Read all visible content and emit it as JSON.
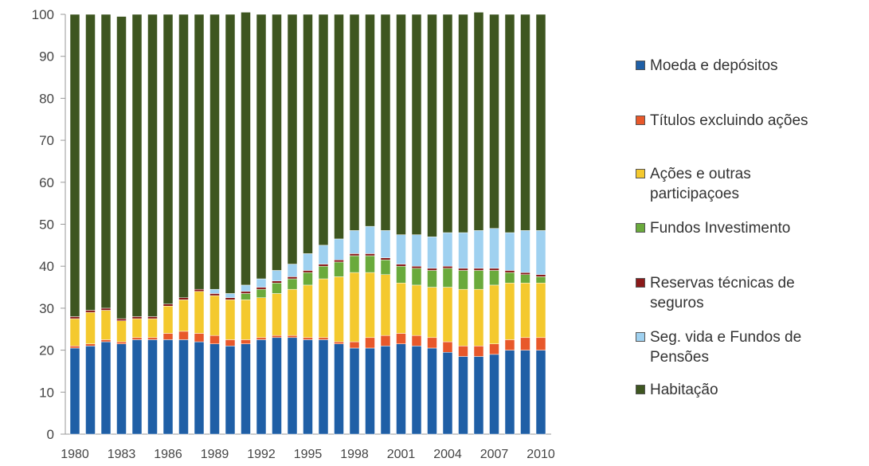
{
  "chart_data": {
    "type": "bar",
    "stacked": true,
    "title": "",
    "xlabel": "",
    "ylabel": "",
    "ylim": [
      0,
      100
    ],
    "yticks": [
      0,
      10,
      20,
      30,
      40,
      50,
      60,
      70,
      80,
      90,
      100
    ],
    "categories": [
      "1980",
      "1981",
      "1982",
      "1983",
      "1984",
      "1985",
      "1986",
      "1987",
      "1988",
      "1989",
      "1990",
      "1991",
      "1992",
      "1993",
      "1994",
      "1995",
      "1996",
      "1997",
      "1998",
      "1999",
      "2000",
      "2001",
      "2002",
      "2003",
      "2004",
      "2005",
      "2006",
      "2007",
      "2008",
      "2009",
      "2010"
    ],
    "xtick_labels": [
      "1980",
      "1983",
      "1986",
      "1989",
      "1992",
      "1995",
      "1998",
      "2001",
      "2004",
      "2007",
      "2010"
    ],
    "legend_position": "right",
    "grid": false,
    "series": [
      {
        "name": "Moeda e depósitos",
        "color": "#1f5fa6",
        "values": [
          20.5,
          21.0,
          22.0,
          21.5,
          22.5,
          22.5,
          22.5,
          22.5,
          22.0,
          21.5,
          21.0,
          21.5,
          22.5,
          23.0,
          23.0,
          22.5,
          22.5,
          21.5,
          20.5,
          20.5,
          21.0,
          21.5,
          21.0,
          20.5,
          19.5,
          18.5,
          18.5,
          19.0,
          20.0,
          20.0,
          20.0
        ]
      },
      {
        "name": "Títulos excluindo ações",
        "color": "#e8582a",
        "values": [
          0.5,
          0.5,
          0.5,
          0.5,
          0.5,
          0.5,
          1.5,
          2.0,
          2.0,
          2.0,
          1.5,
          1.0,
          0.5,
          0.5,
          0.5,
          0.5,
          0.5,
          0.5,
          1.5,
          2.5,
          2.5,
          2.5,
          2.5,
          2.5,
          2.5,
          2.5,
          2.5,
          2.5,
          2.5,
          3.0,
          3.0
        ]
      },
      {
        "name": "Ações e outras\nparticipaçoes",
        "color": "#f4c92e",
        "values": [
          6.5,
          7.5,
          7.0,
          5.0,
          4.5,
          4.5,
          6.5,
          7.5,
          10.0,
          9.5,
          9.5,
          9.5,
          9.5,
          10.0,
          11.0,
          12.5,
          14.0,
          15.5,
          16.5,
          15.5,
          14.5,
          12.0,
          12.0,
          12.0,
          13.0,
          13.5,
          13.5,
          14.0,
          13.5,
          13.0,
          13.0
        ]
      },
      {
        "name": "Fundos Investimento",
        "color": "#6aaa3c",
        "values": [
          0.0,
          0.0,
          0.0,
          0.0,
          0.0,
          0.0,
          0.0,
          0.0,
          0.0,
          0.0,
          0.0,
          1.5,
          2.0,
          2.5,
          2.5,
          3.0,
          3.0,
          3.5,
          4.0,
          4.0,
          3.5,
          4.0,
          4.0,
          4.0,
          4.5,
          4.5,
          4.5,
          3.5,
          2.5,
          2.0,
          1.5
        ]
      },
      {
        "name": "Reservas técnicas de\nseguros",
        "color": "#8b1a1a",
        "values": [
          0.5,
          0.5,
          0.5,
          0.5,
          0.5,
          0.5,
          0.5,
          0.5,
          0.5,
          0.5,
          0.5,
          0.5,
          0.5,
          0.5,
          0.5,
          0.5,
          0.5,
          0.5,
          0.5,
          0.5,
          0.5,
          0.5,
          0.5,
          0.5,
          0.5,
          0.5,
          0.5,
          0.5,
          0.5,
          0.5,
          0.5
        ]
      },
      {
        "name": " Seg. vida e Fundos de\nPensões",
        "color": "#9fd1f0",
        "values": [
          0.0,
          0.0,
          0.0,
          0.0,
          0.0,
          0.0,
          0.0,
          0.0,
          0.0,
          1.0,
          1.0,
          1.5,
          2.0,
          2.5,
          3.0,
          4.0,
          4.5,
          5.0,
          5.5,
          6.5,
          6.5,
          7.0,
          7.5,
          7.5,
          8.0,
          8.5,
          9.0,
          9.5,
          9.0,
          10.0,
          10.5
        ]
      },
      {
        "name": "Habitação",
        "color": "#3e5620",
        "values": [
          72.0,
          70.5,
          70.0,
          72.0,
          72.0,
          72.0,
          69.0,
          67.5,
          65.5,
          65.5,
          66.5,
          65.0,
          63.0,
          61.0,
          59.5,
          57.0,
          55.0,
          53.5,
          51.5,
          50.5,
          51.5,
          52.5,
          52.5,
          53.0,
          52.0,
          52.0,
          52.0,
          51.0,
          52.0,
          51.5,
          51.5
        ]
      }
    ]
  }
}
